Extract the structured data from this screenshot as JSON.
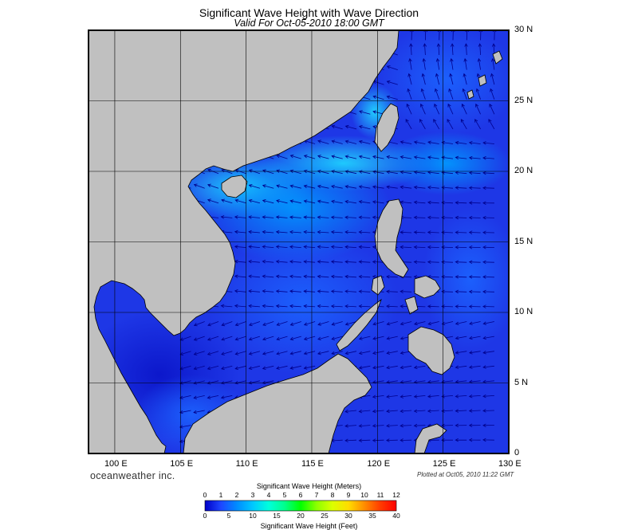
{
  "title": "Significant Wave Height with Wave Direction",
  "subtitle": "Valid For Oct-05-2010 18:00 GMT",
  "branding": "oceanweather inc.",
  "plotted_at": "Plotted at Oct05, 2010 11:22 GMT",
  "map": {
    "lon_range": [
      98,
      130
    ],
    "lat_range": [
      0,
      30
    ],
    "lon_labels": [
      "100 E",
      "105 E",
      "110 E",
      "115 E",
      "120 E",
      "125 E",
      "130 E"
    ],
    "lat_labels": [
      "30 N",
      "25 N",
      "20 N",
      "15 N",
      "10 N",
      "5 N",
      "0"
    ],
    "colors": {
      "land": "#c0c0c0",
      "ocean_base": "#1e37e6",
      "coast": "#000000",
      "grid": "#000000",
      "arrow": "#00008c"
    }
  },
  "legend": {
    "meters_title": "Significant Wave Height (Meters)",
    "feet_title": "Significant Wave Height (Feet)",
    "meters_ticks": [
      "0",
      "1",
      "2",
      "3",
      "4",
      "5",
      "6",
      "7",
      "8",
      "9",
      "10",
      "11",
      "12"
    ],
    "feet_ticks": [
      "0",
      "5",
      "10",
      "15",
      "20",
      "25",
      "30",
      "35",
      "40"
    ],
    "colors": [
      "#0000c8",
      "#1e46ff",
      "#008cff",
      "#00c8ff",
      "#00ffdc",
      "#00ff8c",
      "#00ff00",
      "#8cff00",
      "#dcff00",
      "#ffdc00",
      "#ff8c00",
      "#ff3c00",
      "#ff0000"
    ]
  }
}
